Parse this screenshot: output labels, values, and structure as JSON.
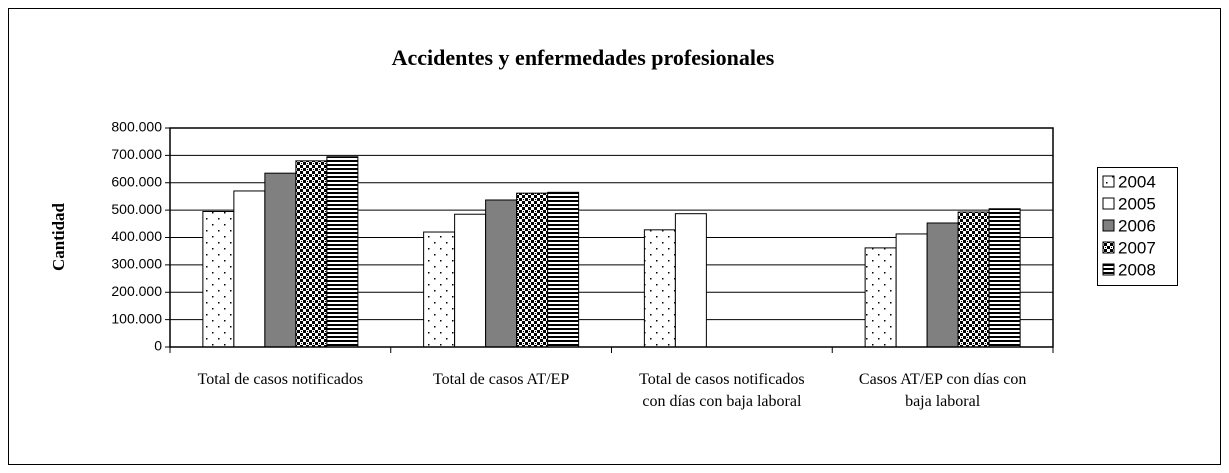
{
  "chart_data": {
    "type": "bar",
    "title": "Accidentes y enfermedades profesionales",
    "y_label": "Cantidad",
    "categories": [
      "Total de casos notificados",
      "Total de casos AT/EP",
      "Total de casos notificados con días con baja laboral",
      "Casos AT/EP con días con baja laboral"
    ],
    "series": [
      {
        "name": "2004",
        "color": "#ffffff",
        "values": [
          495000,
          420000,
          428000,
          362000
        ]
      },
      {
        "name": "2005",
        "color": "#ffffff",
        "values": [
          570000,
          485000,
          487000,
          413000
        ]
      },
      {
        "name": "2006",
        "color": "#808080",
        "values": [
          635000,
          537000,
          null,
          453000
        ]
      },
      {
        "name": "2007",
        "color": "#000000",
        "values": [
          680000,
          562000,
          null,
          493000
        ]
      },
      {
        "name": "2008",
        "color": "#000000",
        "values": [
          695000,
          565000,
          null,
          505000
        ]
      }
    ],
    "ylim": [
      0,
      800000
    ],
    "yticks": [
      0,
      {
        "value": 100000,
        "label": "100.000"
      },
      {
        "value": 200000,
        "label": "200.000"
      },
      {
        "value": 300000,
        "label": "300.000"
      },
      {
        "value": 400000,
        "label": "400.000"
      },
      {
        "value": 500000,
        "label": "500.000"
      },
      {
        "value": 600000,
        "label": "600.000"
      },
      {
        "value": 700000,
        "label": "700.000"
      },
      {
        "value": 800000,
        "label": "800.000"
      }
    ],
    "grid": true,
    "legend": "right"
  }
}
